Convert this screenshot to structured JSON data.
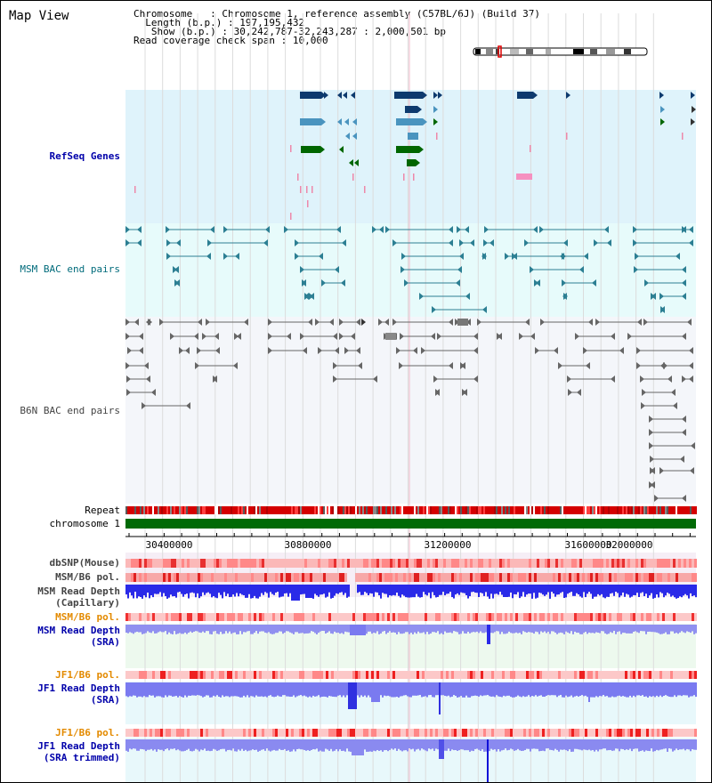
{
  "page_title": "Map View",
  "info": {
    "chromosome_key": "Chromosome",
    "chromosome_val": "Chromosome 1, reference assembly (C57BL/6J) (Build 37)",
    "length_key": "Length (b.p.)",
    "length_val": "197,195,432",
    "show_key": "Show (b.p.)",
    "show_val": "30,242,787-32,243,287 : 2,000,501 bp",
    "coverage_key": "Read coverage check span",
    "coverage_val": "10,000"
  },
  "tracks": {
    "refseq": "RefSeq Genes",
    "msm_bac": "MSM BAC end pairs",
    "b6n_bac": "B6N BAC end pairs",
    "repeat": "Repeat",
    "chromosome": "chromosome 1",
    "dbsnp": "dbSNP(Mouse)",
    "msm_b6_pol_1": "MSM/B6 pol.",
    "msm_read_depth_cap": "MSM Read Depth\n(Capillary)",
    "msm_b6_pol_2": "MSM/B6 pol.",
    "msm_read_depth_sra": "MSM Read Depth\n(SRA)",
    "jf1_b6_pol_1": "JF1/B6 pol.",
    "jf1_read_depth_sra": "JF1 Read Depth\n(SRA)",
    "jf1_b6_pol_2": "JF1/B6 pol.",
    "jf1_read_depth_trim": "JF1 Read Depth\n(SRA trimmed)"
  },
  "axis": {
    "ticks": [
      "30400000",
      "30800000",
      "31200000",
      "31600000",
      "32000000"
    ]
  },
  "colors": {
    "refseq_bg": "#dff3fb",
    "msm_bg": "#e7fbfb",
    "b6n_bg": "#f4f6fa",
    "gene_dark": "#0d3a6e",
    "gene_light": "#4a94bf",
    "gene_green": "#006600",
    "bac_teal": "#2c7f93",
    "bac_grey": "#666666",
    "depth_blue": "#3a3aee",
    "depth_light": "#8a8af5",
    "label_blue": "#0000aa",
    "label_teal": "#006b7b",
    "label_orange": "#e38a00"
  }
}
